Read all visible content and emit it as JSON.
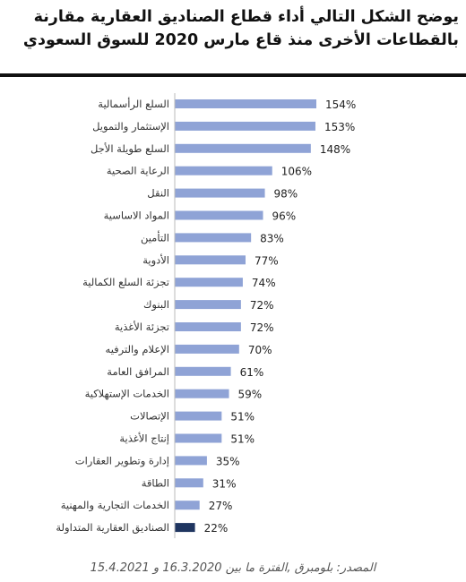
{
  "title_lines": [
    "يوضح الشكل التالي أداء قطاع الصناديق العقارية مقارنة",
    "بالقطاعات الأخرى منذ قاع مارس 2020 للسوق السعودي"
  ],
  "source": "المصدر: بلومبرق ,الفترة ما بين 16.3.2020 و 15.4.2021",
  "colors": {
    "bar": "#8fa3d6",
    "highlight": "#1f3560",
    "axis": "#bbbbbb"
  },
  "chart_data": {
    "type": "bar",
    "orientation": "horizontal",
    "title": "",
    "xlabel": "",
    "ylabel": "",
    "xlim": [
      0,
      154
    ],
    "grid": false,
    "value_suffix": "%",
    "categories": [
      "السلع الرأسمالية",
      "الإستثمار والتمويل",
      "السلع طويلة الأجل",
      "الرعاية الصحية",
      "النقل",
      "المواد الاساسية",
      "التأمين",
      "الأدوية",
      "تجزئة السلع الكمالية",
      "البنوك",
      "تجزئة الأغذية",
      "الإعلام والترفيه",
      "المرافق العامة",
      "الخدمات الإستهلاكية",
      "الإتصالات",
      "إنتاج الأغذية",
      "إدارة وتطوير العقارات",
      "الطاقة",
      "الخدمات التجارية والمهنية",
      "الصناديق العقارية المتداولة"
    ],
    "values": [
      154,
      153,
      148,
      106,
      98,
      96,
      83,
      77,
      74,
      72,
      72,
      70,
      61,
      59,
      51,
      51,
      35,
      31,
      27,
      22
    ],
    "highlight_index": 19
  }
}
